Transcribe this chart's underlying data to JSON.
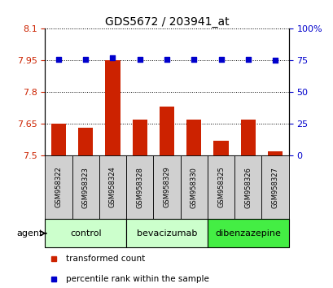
{
  "title": "GDS5672 / 203941_at",
  "samples": [
    "GSM958322",
    "GSM958323",
    "GSM958324",
    "GSM958328",
    "GSM958329",
    "GSM958330",
    "GSM958325",
    "GSM958326",
    "GSM958327"
  ],
  "transformed_counts": [
    7.65,
    7.63,
    7.95,
    7.67,
    7.73,
    7.67,
    7.57,
    7.67,
    7.52
  ],
  "percentile_ranks": [
    76,
    76,
    77,
    76,
    76,
    76,
    76,
    76,
    75
  ],
  "bar_bottom": 7.5,
  "ylim_left": [
    7.5,
    8.1
  ],
  "ylim_right": [
    0,
    100
  ],
  "yticks_left": [
    7.5,
    7.65,
    7.8,
    7.95,
    8.1
  ],
  "yticks_right": [
    0,
    25,
    50,
    75,
    100
  ],
  "ytick_labels_left": [
    "7.5",
    "7.65",
    "7.8",
    "7.95",
    "8.1"
  ],
  "ytick_labels_right": [
    "0",
    "25",
    "50",
    "75",
    "100%"
  ],
  "bar_color": "#cc2200",
  "scatter_color": "#0000cc",
  "grid_color": "#000000",
  "groups": [
    {
      "label": "control",
      "indices": [
        0,
        1,
        2
      ],
      "color": "#ccffcc"
    },
    {
      "label": "bevacizumab",
      "indices": [
        3,
        4,
        5
      ],
      "color": "#ccffcc"
    },
    {
      "label": "dibenzazepine",
      "indices": [
        6,
        7,
        8
      ],
      "color": "#44ee44"
    }
  ],
  "agent_label": "agent",
  "legend_items": [
    {
      "label": "transformed count",
      "color": "#cc2200"
    },
    {
      "label": "percentile rank within the sample",
      "color": "#0000cc"
    }
  ],
  "sample_box_color": "#d0d0d0",
  "bg_color": "#ffffff",
  "tick_label_color_left": "#cc2200",
  "tick_label_color_right": "#0000cc"
}
